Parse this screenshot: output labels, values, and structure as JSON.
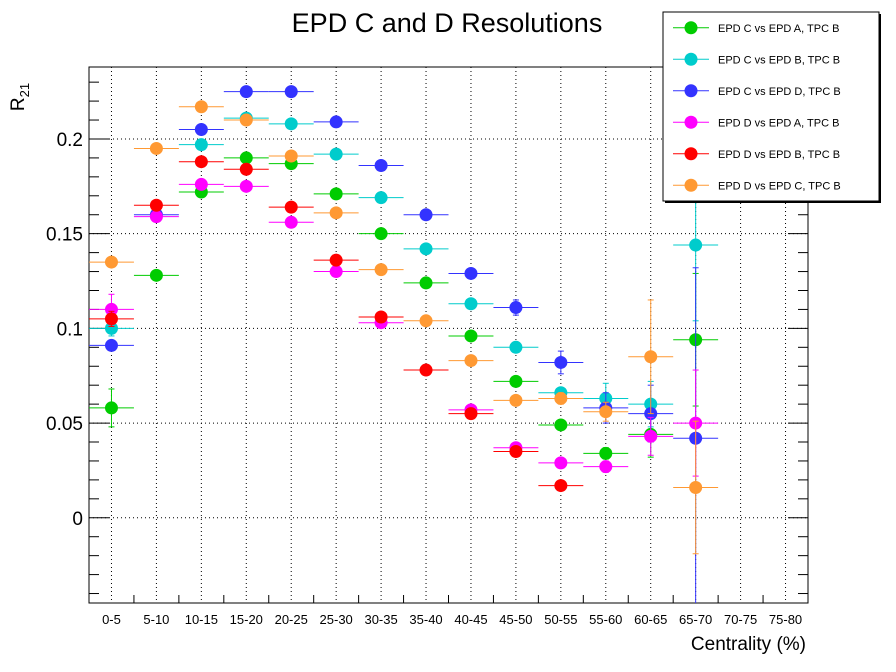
{
  "chart_data": {
    "type": "scatter",
    "title": "EPD C and D Resolutions",
    "xlabel": "Centrality (%)",
    "ylabel": "R21",
    "categories": [
      "0-5",
      "5-10",
      "10-15",
      "15-20",
      "20-25",
      "25-30",
      "30-35",
      "35-40",
      "40-45",
      "45-50",
      "50-55",
      "55-60",
      "60-65",
      "65-70",
      "70-75",
      "75-80"
    ],
    "ylim": [
      -0.045,
      0.238
    ],
    "yticks": [
      0,
      0.05,
      0.1,
      0.15,
      0.2
    ],
    "ytick_labels": [
      "0",
      "0.05",
      "0.1",
      "0.15",
      "0.2"
    ],
    "grid": true,
    "legend_position": "top-right",
    "series": [
      {
        "name": "EPD C vs EPD A, TPC B",
        "color": "#00cc00",
        "values": [
          0.058,
          0.128,
          0.172,
          0.19,
          0.187,
          0.171,
          0.15,
          0.124,
          0.096,
          0.072,
          0.049,
          0.034,
          0.044,
          0.094,
          null,
          null
        ],
        "errors": [
          0.01,
          0.001,
          0.002,
          0.001,
          0.001,
          0.001,
          0.001,
          0.001,
          0.001,
          0.001,
          0.001,
          0.003,
          0.012,
          0.035,
          0,
          0
        ]
      },
      {
        "name": "EPD C vs EPD B, TPC B",
        "color": "#00cccc",
        "values": [
          0.1,
          null,
          0.197,
          0.211,
          0.208,
          0.192,
          0.169,
          0.142,
          0.113,
          0.09,
          0.066,
          0.063,
          0.06,
          0.144,
          null,
          null
        ],
        "errors": [
          0.004,
          0,
          0.002,
          0.001,
          0.001,
          0.001,
          0.001,
          0.001,
          0.001,
          0.001,
          0.002,
          0.008,
          0.012,
          0.04,
          0,
          0
        ]
      },
      {
        "name": "EPD C vs EPD D, TPC B",
        "color": "#3333ff",
        "values": [
          0.091,
          0.16,
          0.205,
          0.225,
          0.225,
          0.209,
          0.186,
          0.16,
          0.129,
          0.111,
          0.082,
          0.058,
          0.055,
          0.042,
          null,
          null
        ],
        "errors": [
          0.002,
          0.001,
          0.001,
          0.001,
          0.001,
          0.001,
          0.001,
          0.001,
          0.001,
          0.004,
          0.006,
          0.008,
          0.015,
          0.09,
          0,
          0
        ]
      },
      {
        "name": "EPD D vs EPD A, TPC B",
        "color": "#ff00ff",
        "values": [
          0.11,
          0.159,
          0.176,
          0.175,
          0.156,
          0.13,
          0.103,
          null,
          0.057,
          0.037,
          0.029,
          0.027,
          0.043,
          0.05,
          null,
          null
        ],
        "errors": [
          0.008,
          0.002,
          0.002,
          0.001,
          0.001,
          0.001,
          0.001,
          0,
          0.002,
          0.002,
          0.002,
          0.003,
          0.01,
          0.028,
          0,
          0
        ]
      },
      {
        "name": "EPD D vs EPD B, TPC B",
        "color": "#ff0000",
        "values": [
          0.105,
          0.165,
          0.188,
          0.184,
          0.164,
          0.136,
          0.106,
          0.078,
          0.055,
          0.035,
          0.017,
          null,
          null,
          null,
          null,
          null
        ],
        "errors": [
          0.004,
          0.001,
          0.001,
          0.001,
          0.001,
          0.001,
          0.001,
          0.001,
          0.001,
          0.001,
          0.001,
          0,
          0,
          0,
          0,
          0
        ]
      },
      {
        "name": "EPD D vs EPD C, TPC B",
        "color": "#ff9933",
        "values": [
          0.135,
          0.195,
          0.217,
          0.21,
          0.191,
          0.161,
          0.131,
          0.104,
          0.083,
          0.062,
          0.063,
          0.056,
          0.085,
          0.016,
          null,
          null
        ],
        "errors": [
          0.001,
          0.001,
          0.001,
          0.001,
          0.001,
          0.001,
          0.001,
          0.001,
          0.001,
          0.002,
          0.003,
          0.005,
          0.03,
          0.035,
          0,
          0
        ]
      }
    ]
  }
}
